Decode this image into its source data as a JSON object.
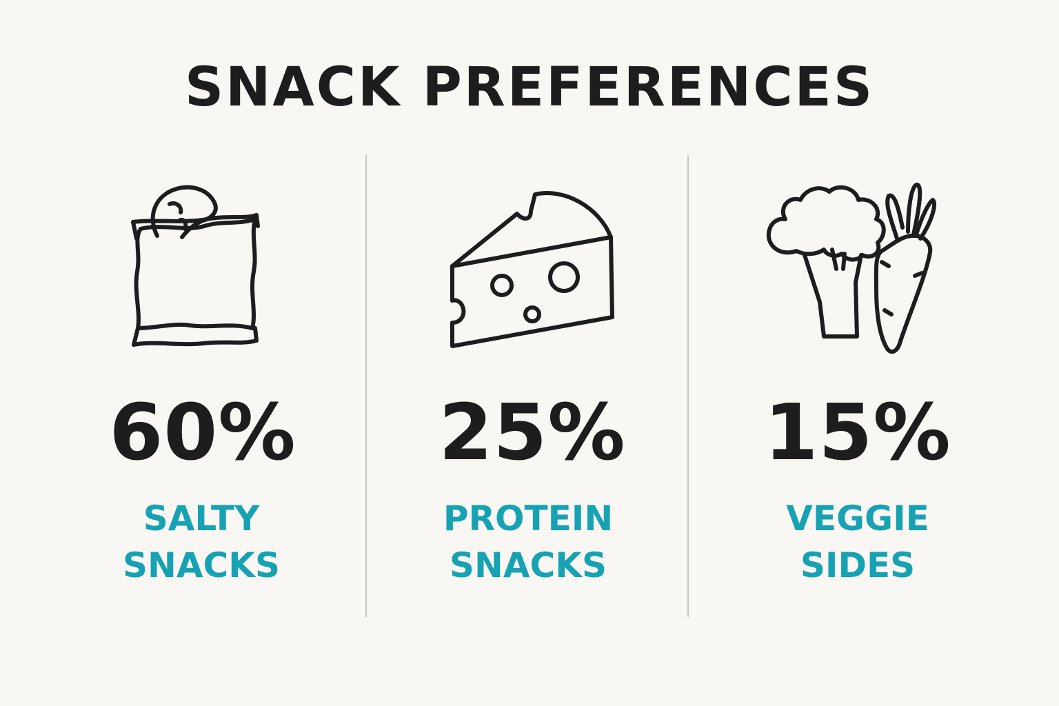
{
  "chart_data": {
    "type": "table",
    "title": "SNACK PREFERENCES",
    "unit": "%",
    "categories": [
      {
        "value": 60,
        "display": "60%",
        "label_lines": [
          "SALTY",
          "SNACKS"
        ],
        "icon": "chip-bag-icon"
      },
      {
        "value": 25,
        "display": "25%",
        "label_lines": [
          "PROTEIN",
          "SNACKS"
        ],
        "icon": "cheese-icon"
      },
      {
        "value": 15,
        "display": "15%",
        "label_lines": [
          "VEGGIE",
          "SIDES"
        ],
        "icon": "broccoli-carrot-icon"
      }
    ]
  },
  "colors": {
    "background": "#f8f7f3",
    "text": "#1d1d1d",
    "accent": "#17a2b3",
    "divider": "#c4c4c0"
  }
}
